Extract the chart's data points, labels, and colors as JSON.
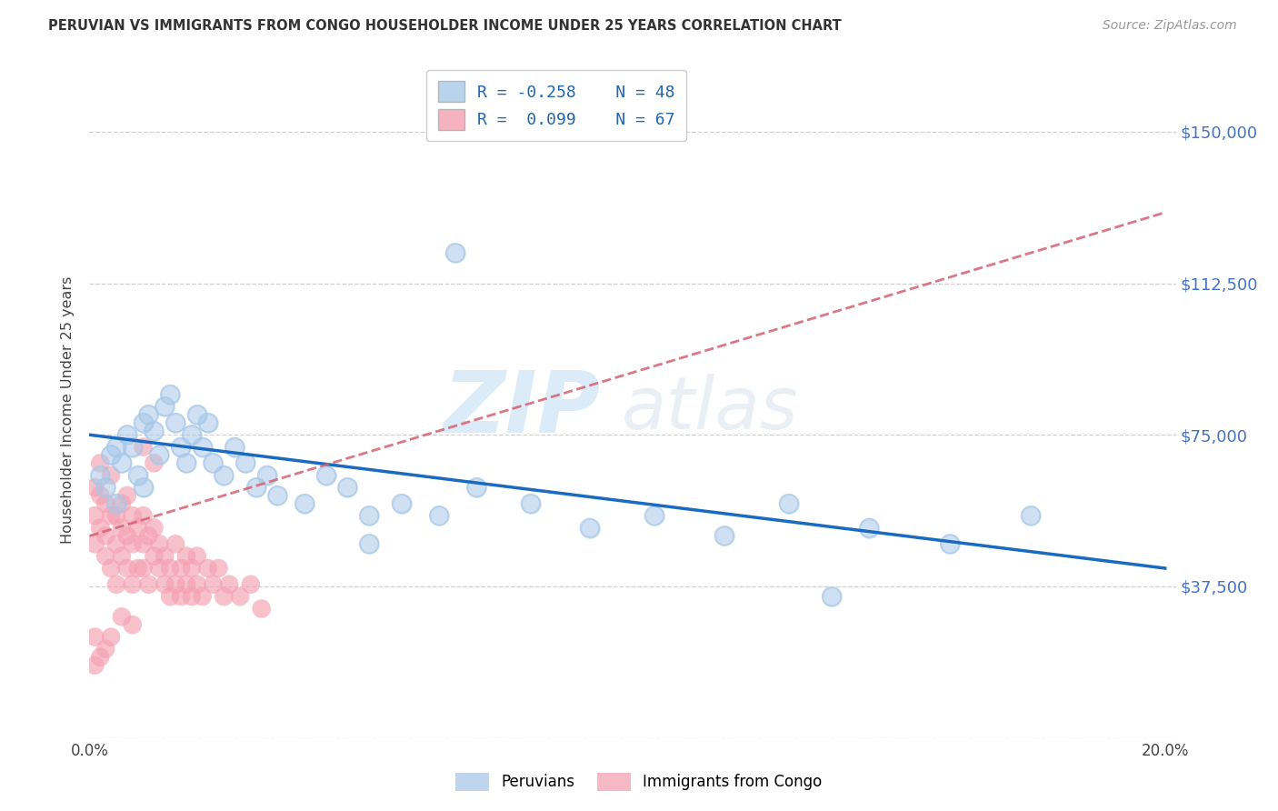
{
  "title": "PERUVIAN VS IMMIGRANTS FROM CONGO HOUSEHOLDER INCOME UNDER 25 YEARS CORRELATION CHART",
  "source": "Source: ZipAtlas.com",
  "ylabel": "Householder Income Under 25 years",
  "xlim": [
    0.0,
    0.202
  ],
  "ylim": [
    0,
    162500
  ],
  "yticks": [
    0,
    37500,
    75000,
    112500,
    150000
  ],
  "ytick_labels": [
    "",
    "$37,500",
    "$75,000",
    "$112,500",
    "$150,000"
  ],
  "xtick_positions": [
    0.0,
    0.025,
    0.05,
    0.075,
    0.1,
    0.125,
    0.15,
    0.175,
    0.2
  ],
  "blue_color": "#a8c8e8",
  "pink_color": "#f4a0b0",
  "blue_line_color": "#1a6abf",
  "pink_line_color": "#d46070",
  "bg": "#ffffff",
  "grid_color": "#d0d0d0",
  "peru_line_x0": 0.0,
  "peru_line_y0": 75000,
  "peru_line_x1": 0.2,
  "peru_line_y1": 42000,
  "congo_line_x0": 0.0,
  "congo_line_y0": 50000,
  "congo_line_x1": 0.2,
  "congo_line_y1": 130000,
  "peru_x": [
    0.002,
    0.003,
    0.004,
    0.005,
    0.005,
    0.006,
    0.007,
    0.008,
    0.009,
    0.01,
    0.01,
    0.011,
    0.012,
    0.013,
    0.014,
    0.015,
    0.016,
    0.017,
    0.018,
    0.019,
    0.02,
    0.021,
    0.022,
    0.023,
    0.025,
    0.027,
    0.029,
    0.031,
    0.033,
    0.035,
    0.04,
    0.044,
    0.048,
    0.052,
    0.058,
    0.065,
    0.072,
    0.082,
    0.093,
    0.105,
    0.118,
    0.13,
    0.145,
    0.16,
    0.175,
    0.068,
    0.052,
    0.138
  ],
  "peru_y": [
    65000,
    62000,
    70000,
    58000,
    72000,
    68000,
    75000,
    72000,
    65000,
    78000,
    62000,
    80000,
    76000,
    70000,
    82000,
    85000,
    78000,
    72000,
    68000,
    75000,
    80000,
    72000,
    78000,
    68000,
    65000,
    72000,
    68000,
    62000,
    65000,
    60000,
    58000,
    65000,
    62000,
    55000,
    58000,
    55000,
    62000,
    58000,
    52000,
    55000,
    50000,
    58000,
    52000,
    48000,
    55000,
    120000,
    48000,
    35000
  ],
  "congo_x": [
    0.001,
    0.001,
    0.001,
    0.002,
    0.002,
    0.002,
    0.003,
    0.003,
    0.003,
    0.004,
    0.004,
    0.004,
    0.005,
    0.005,
    0.005,
    0.006,
    0.006,
    0.006,
    0.007,
    0.007,
    0.007,
    0.008,
    0.008,
    0.008,
    0.009,
    0.009,
    0.01,
    0.01,
    0.01,
    0.011,
    0.011,
    0.012,
    0.012,
    0.013,
    0.013,
    0.014,
    0.014,
    0.015,
    0.015,
    0.016,
    0.016,
    0.017,
    0.017,
    0.018,
    0.018,
    0.019,
    0.019,
    0.02,
    0.02,
    0.021,
    0.022,
    0.023,
    0.024,
    0.025,
    0.026,
    0.028,
    0.03,
    0.032,
    0.01,
    0.012,
    0.008,
    0.006,
    0.004,
    0.003,
    0.002,
    0.001,
    0.001
  ],
  "congo_y": [
    55000,
    62000,
    48000,
    60000,
    52000,
    68000,
    45000,
    58000,
    50000,
    55000,
    42000,
    65000,
    48000,
    55000,
    38000,
    52000,
    58000,
    45000,
    50000,
    42000,
    60000,
    48000,
    55000,
    38000,
    52000,
    42000,
    48000,
    55000,
    42000,
    50000,
    38000,
    45000,
    52000,
    42000,
    48000,
    38000,
    45000,
    35000,
    42000,
    38000,
    48000,
    42000,
    35000,
    45000,
    38000,
    42000,
    35000,
    38000,
    45000,
    35000,
    42000,
    38000,
    42000,
    35000,
    38000,
    35000,
    38000,
    32000,
    72000,
    68000,
    28000,
    30000,
    25000,
    22000,
    20000,
    18000,
    25000
  ]
}
